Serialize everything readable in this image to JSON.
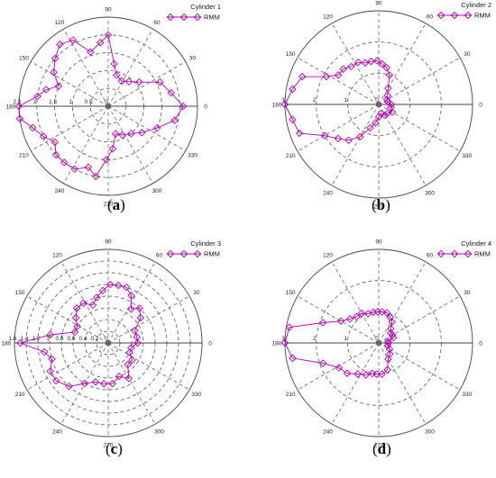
{
  "chart_data": [
    {
      "type": "scatter",
      "projection": "polar",
      "legend_title": "Cylinder 1",
      "series": [
        {
          "name": "RMM",
          "color": "#b000b0",
          "marker": "diamond"
        }
      ],
      "angle_ticks": [
        "0",
        "30",
        "60",
        "90",
        "120",
        "150",
        "180",
        "210",
        "240",
        "270",
        "300",
        "330"
      ],
      "radial_ticks": [
        "0",
        "0.5",
        "1",
        "1.5",
        "2",
        "2.5"
      ],
      "rmax": 2.5,
      "label": "(a)",
      "points": [
        [
          0,
          2.1
        ],
        [
          12,
          1.8
        ],
        [
          25,
          1.6
        ],
        [
          38,
          1.1
        ],
        [
          50,
          0.9
        ],
        [
          62,
          0.8
        ],
        [
          75,
          0.9
        ],
        [
          82,
          1.2
        ],
        [
          90,
          2.0
        ],
        [
          97,
          1.8
        ],
        [
          108,
          1.6
        ],
        [
          118,
          2.1
        ],
        [
          128,
          2.2
        ],
        [
          138,
          2.0
        ],
        [
          148,
          1.8
        ],
        [
          158,
          1.5
        ],
        [
          165,
          1.8
        ],
        [
          172,
          2.0
        ],
        [
          180,
          2.5
        ],
        [
          188,
          2.5
        ],
        [
          196,
          2.2
        ],
        [
          205,
          2.0
        ],
        [
          214,
          1.8
        ],
        [
          223,
          2.0
        ],
        [
          232,
          2.0
        ],
        [
          242,
          2.0
        ],
        [
          252,
          1.8
        ],
        [
          260,
          2.0
        ],
        [
          268,
          1.5
        ],
        [
          276,
          1.2
        ],
        [
          285,
          0.8
        ],
        [
          296,
          0.9
        ],
        [
          310,
          1.0
        ],
        [
          322,
          1.2
        ],
        [
          336,
          1.5
        ],
        [
          348,
          1.9
        ]
      ]
    },
    {
      "type": "scatter",
      "projection": "polar",
      "legend_title": "Cylinder 2",
      "series": [
        {
          "name": "RMM",
          "color": "#b000b0",
          "marker": "diamond"
        }
      ],
      "angle_ticks": [
        "0",
        "30",
        "60",
        "90",
        "120",
        "150",
        "180",
        "210",
        "240",
        "270",
        "300",
        "330"
      ],
      "radial_ticks": [
        "0",
        "1",
        "2",
        "3"
      ],
      "rmax": 3,
      "label": "(b)",
      "points": [
        [
          0,
          0.4
        ],
        [
          15,
          0.3
        ],
        [
          30,
          0.3
        ],
        [
          45,
          0.4
        ],
        [
          60,
          0.6
        ],
        [
          70,
          1.0
        ],
        [
          78,
          1.2
        ],
        [
          85,
          1.3
        ],
        [
          92,
          1.4
        ],
        [
          100,
          1.4
        ],
        [
          108,
          1.4
        ],
        [
          116,
          1.5
        ],
        [
          126,
          1.5
        ],
        [
          135,
          1.6
        ],
        [
          144,
          1.6
        ],
        [
          152,
          1.9
        ],
        [
          160,
          2.6
        ],
        [
          170,
          2.8
        ],
        [
          180,
          3.0
        ],
        [
          190,
          2.8
        ],
        [
          200,
          2.7
        ],
        [
          210,
          2.0
        ],
        [
          220,
          1.7
        ],
        [
          230,
          1.5
        ],
        [
          240,
          1.2
        ],
        [
          250,
          0.8
        ],
        [
          260,
          0.6
        ],
        [
          270,
          0.4
        ],
        [
          285,
          0.3
        ],
        [
          300,
          0.4
        ],
        [
          315,
          0.4
        ],
        [
          330,
          0.5
        ],
        [
          345,
          0.4
        ]
      ]
    },
    {
      "type": "scatter",
      "projection": "polar",
      "legend_title": "Cylinder 3",
      "series": [
        {
          "name": "RMM",
          "color": "#b000b0",
          "marker": "diamond"
        }
      ],
      "angle_ticks": [
        "0",
        "30",
        "60",
        "90",
        "120",
        "150",
        "180",
        "210",
        "240",
        "270",
        "300",
        "330"
      ],
      "radial_ticks": [
        "0",
        "0.2",
        "0.4",
        "0.6",
        "0.8",
        "1",
        "1.2",
        "1.4",
        "1.6"
      ],
      "rmax": 1.6,
      "label": "(c)",
      "points": [
        [
          0,
          0.5
        ],
        [
          12,
          0.5
        ],
        [
          25,
          0.5
        ],
        [
          38,
          0.7
        ],
        [
          48,
          0.8
        ],
        [
          56,
          0.7
        ],
        [
          64,
          0.9
        ],
        [
          72,
          1.0
        ],
        [
          80,
          1.0
        ],
        [
          88,
          1.0
        ],
        [
          96,
          0.9
        ],
        [
          104,
          0.8
        ],
        [
          112,
          0.7
        ],
        [
          122,
          0.8
        ],
        [
          132,
          0.8
        ],
        [
          142,
          0.7
        ],
        [
          152,
          0.6
        ],
        [
          162,
          0.6
        ],
        [
          172,
          1.0
        ],
        [
          180,
          1.5
        ],
        [
          188,
          1.1
        ],
        [
          196,
          1.0
        ],
        [
          206,
          1.1
        ],
        [
          216,
          1.1
        ],
        [
          228,
          1.0
        ],
        [
          240,
          0.8
        ],
        [
          252,
          0.7
        ],
        [
          264,
          0.7
        ],
        [
          276,
          0.7
        ],
        [
          288,
          0.6
        ],
        [
          300,
          0.7
        ],
        [
          312,
          0.5
        ],
        [
          324,
          0.5
        ],
        [
          336,
          0.4
        ],
        [
          348,
          0.4
        ]
      ]
    },
    {
      "type": "scatter",
      "projection": "polar",
      "legend_title": "Cylinder 4",
      "series": [
        {
          "name": "RMM",
          "color": "#b000b0",
          "marker": "diamond"
        }
      ],
      "angle_ticks": [
        "0",
        "30",
        "60",
        "90",
        "120",
        "150",
        "180",
        "210",
        "240",
        "270",
        "300",
        "330"
      ],
      "radial_ticks": [
        "0",
        "1",
        "2",
        "3"
      ],
      "rmax": 3,
      "label": "(d)",
      "points": [
        [
          0,
          0.3
        ],
        [
          10,
          0.3
        ],
        [
          20,
          0.5
        ],
        [
          30,
          0.5
        ],
        [
          40,
          0.5
        ],
        [
          50,
          0.6
        ],
        [
          58,
          0.8
        ],
        [
          66,
          0.9
        ],
        [
          75,
          1.0
        ],
        [
          84,
          1.0
        ],
        [
          92,
          1.0
        ],
        [
          100,
          1.0
        ],
        [
          110,
          1.0
        ],
        [
          120,
          1.1
        ],
        [
          130,
          1.1
        ],
        [
          140,
          1.2
        ],
        [
          150,
          1.4
        ],
        [
          160,
          1.9
        ],
        [
          170,
          2.9
        ],
        [
          180,
          3.0
        ],
        [
          190,
          2.8
        ],
        [
          200,
          1.9
        ],
        [
          212,
          1.5
        ],
        [
          224,
          1.4
        ],
        [
          236,
          1.2
        ],
        [
          248,
          1.1
        ],
        [
          258,
          1.0
        ],
        [
          266,
          1.0
        ],
        [
          276,
          1.0
        ],
        [
          288,
          0.9
        ],
        [
          300,
          0.6
        ],
        [
          315,
          0.5
        ],
        [
          330,
          0.4
        ],
        [
          345,
          0.3
        ]
      ]
    }
  ]
}
